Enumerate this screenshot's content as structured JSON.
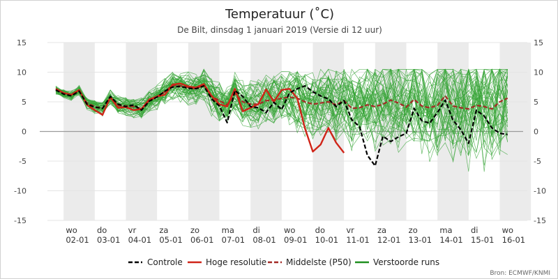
{
  "chart_data": {
    "type": "line",
    "title": "Temperatuur (˚C)",
    "subtitle": "De Bilt, dinsdag 1 januari 2019 (Versie di 12 uur)",
    "credit": "Bron: ECMWF/KNMI",
    "ylim": [
      -15,
      15
    ],
    "yticks": [
      15,
      10,
      5,
      0,
      -5,
      -10,
      -15
    ],
    "grid": true,
    "legend_position": "bottom",
    "x_range_days": [
      0,
      15
    ],
    "day_labels": [
      {
        "weekday": "wo",
        "date": "02-01"
      },
      {
        "weekday": "do",
        "date": "03-01"
      },
      {
        "weekday": "vr",
        "date": "04-01"
      },
      {
        "weekday": "za",
        "date": "05-01"
      },
      {
        "weekday": "zo",
        "date": "06-01"
      },
      {
        "weekday": "ma",
        "date": "07-01"
      },
      {
        "weekday": "di",
        "date": "08-01"
      },
      {
        "weekday": "wo",
        "date": "09-01"
      },
      {
        "weekday": "do",
        "date": "10-01"
      },
      {
        "weekday": "vr",
        "date": "11-01"
      },
      {
        "weekday": "za",
        "date": "12-01"
      },
      {
        "weekday": "zo",
        "date": "13-01"
      },
      {
        "weekday": "ma",
        "date": "14-01"
      },
      {
        "weekday": "di",
        "date": "15-01"
      },
      {
        "weekday": "wo",
        "date": "16-01"
      }
    ],
    "shaded_days": [
      0.25,
      2.25,
      4.25,
      6.25,
      8.25,
      10.25,
      12.25,
      14.25
    ],
    "series": [
      {
        "name": "Controle",
        "color": "#000000",
        "style": "dashed",
        "x": [
          0,
          0.25,
          0.5,
          0.75,
          1,
          1.25,
          1.5,
          1.75,
          2,
          2.25,
          2.5,
          2.75,
          3,
          3.25,
          3.5,
          3.75,
          4,
          4.25,
          4.5,
          4.75,
          5,
          5.25,
          5.5,
          5.75,
          6,
          6.25,
          6.5,
          6.75,
          7,
          7.25,
          7.5,
          7.75,
          8,
          8.25,
          8.5,
          8.75,
          9,
          9.25,
          9.5,
          9.75,
          10,
          10.25,
          10.5,
          10.75,
          11,
          11.25,
          11.5,
          11.75,
          12,
          12.25,
          12.5,
          12.75,
          13,
          13.25,
          13.5,
          13.75,
          14,
          14.25,
          14.5
        ],
        "values": [
          7,
          6.3,
          6,
          6.8,
          4.6,
          4.1,
          3.9,
          5.9,
          4.6,
          4.2,
          4.5,
          3.6,
          5.1,
          5.8,
          6.8,
          7.5,
          7.6,
          7.3,
          7.2,
          7.7,
          5.5,
          4.3,
          1.5,
          6.9,
          5.9,
          4.2,
          4.0,
          3.2,
          4.9,
          3.7,
          6.5,
          7.2,
          7.7,
          6.7,
          6.0,
          5.5,
          4.2,
          5.2,
          2.0,
          0.8,
          -4.0,
          -5.8,
          -0.8,
          -1.7,
          -0.9,
          -0.3,
          3.9,
          1.8,
          1.4,
          3.2,
          5.3,
          1.9,
          0.3,
          -2.0,
          3.6,
          2.6,
          0.6,
          -0.3,
          -0.5
        ]
      },
      {
        "name": "Hoge resolutie",
        "color": "#d02418",
        "style": "solid",
        "x": [
          0,
          0.25,
          0.5,
          0.75,
          1,
          1.25,
          1.5,
          1.75,
          2,
          2.25,
          2.5,
          2.75,
          3,
          3.25,
          3.5,
          3.75,
          4,
          4.25,
          4.5,
          4.75,
          5,
          5.25,
          5.5,
          5.75,
          6,
          6.25,
          6.5,
          6.75,
          7,
          7.25,
          7.5,
          7.75,
          8,
          8.25,
          8.5,
          8.75,
          9,
          9.25
        ],
        "values": [
          7.2,
          6.5,
          6.2,
          7.0,
          4.5,
          3.6,
          2.8,
          5.8,
          4.0,
          4.1,
          3.6,
          3.8,
          5.4,
          5.9,
          6.2,
          7.9,
          8.1,
          7.6,
          7.4,
          8.0,
          6.0,
          4.6,
          4.2,
          7.2,
          3.4,
          4.0,
          4.6,
          7.1,
          5.0,
          7.0,
          7.2,
          5.6,
          0.5,
          -3.4,
          -2.2,
          0.6,
          -1.9,
          -3.6
        ]
      },
      {
        "name": "Middelste (P50)",
        "color": "#a42a25",
        "style": "dashed",
        "x": [
          0,
          0.25,
          0.5,
          0.75,
          1,
          1.25,
          1.5,
          1.75,
          2,
          2.25,
          2.5,
          2.75,
          3,
          3.25,
          3.5,
          3.75,
          4,
          4.25,
          4.5,
          4.75,
          5,
          5.25,
          5.5,
          5.75,
          6,
          6.25,
          6.5,
          6.75,
          7,
          7.25,
          7.5,
          7.75,
          8,
          8.25,
          8.5,
          8.75,
          9,
          9.25,
          9.5,
          9.75,
          10,
          10.25,
          10.5,
          10.75,
          11,
          11.25,
          11.5,
          11.75,
          12,
          12.25,
          12.5,
          12.75,
          13,
          13.25,
          13.5,
          13.75,
          14,
          14.25,
          14.5
        ],
        "values": [
          7,
          6.4,
          6.1,
          6.9,
          4.8,
          4.2,
          3.9,
          5.8,
          4.4,
          4.3,
          4.2,
          3.8,
          5.2,
          5.9,
          6.7,
          7.8,
          7.7,
          7.4,
          7.2,
          7.8,
          6.0,
          5.2,
          4.5,
          6.4,
          5.0,
          4.6,
          4.6,
          5.2,
          5.3,
          5.6,
          5.8,
          5.6,
          5.0,
          4.6,
          4.8,
          5.0,
          4.5,
          5.2,
          3.9,
          4.0,
          4.5,
          4.2,
          4.6,
          5.3,
          4.8,
          4.1,
          5.4,
          4.3,
          4.0,
          4.4,
          6.0,
          4.3,
          4.0,
          3.8,
          4.4,
          4.2,
          3.8,
          5.0,
          5.6
        ]
      },
      {
        "name": "Verstoorde runs",
        "color": "#1f8f1f",
        "style": "solid"
      }
    ]
  }
}
